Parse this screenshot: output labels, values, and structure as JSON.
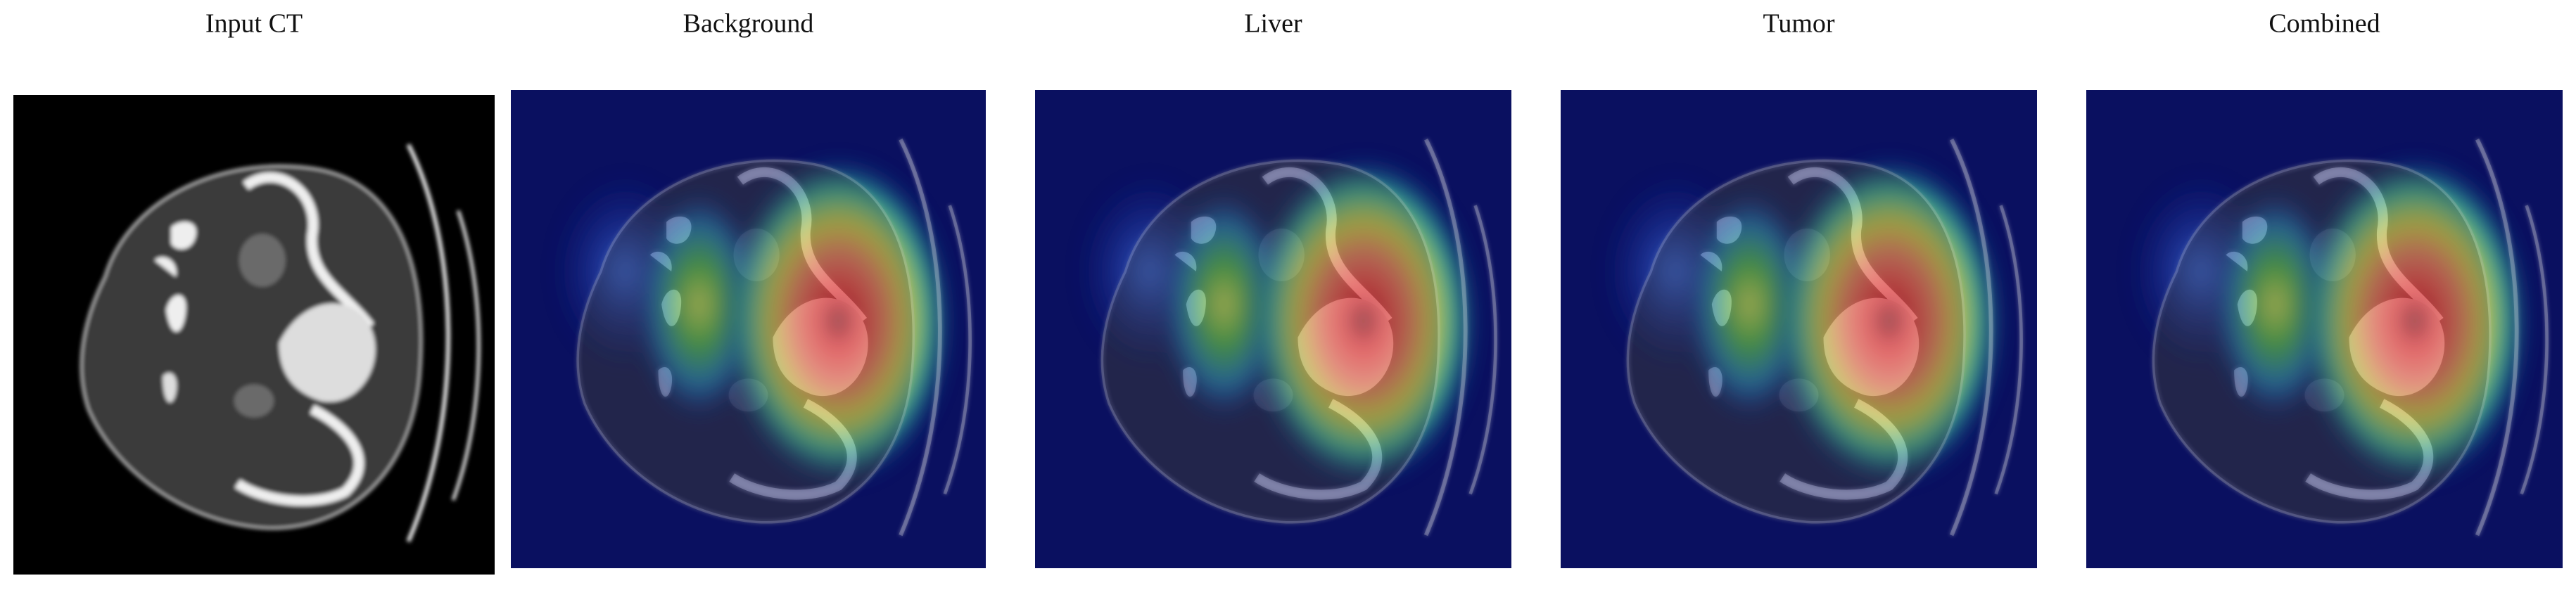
{
  "panels": [
    {
      "title": "Input CT"
    },
    {
      "title": "Background"
    },
    {
      "title": "Liver"
    },
    {
      "title": "Tumor"
    },
    {
      "title": "Combined"
    }
  ]
}
